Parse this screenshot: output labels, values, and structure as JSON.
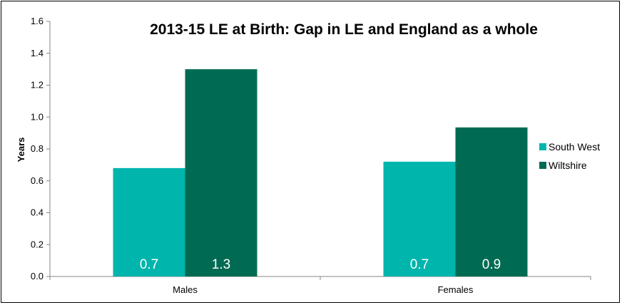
{
  "chart_data": {
    "type": "bar",
    "title": "2013-15 LE at Birth: Gap in LE and England as a whole",
    "ylabel": "Years",
    "xlabel": "",
    "ylim": [
      0,
      1.6
    ],
    "yticks": [
      "0.0",
      "0.2",
      "0.4",
      "0.6",
      "0.8",
      "1.0",
      "1.2",
      "1.4",
      "1.6"
    ],
    "categories": [
      "Males",
      "Females"
    ],
    "series": [
      {
        "name": "South West",
        "color": "#00B5AC",
        "values": [
          0.68,
          0.72
        ],
        "labels": [
          "0.7",
          "0.7"
        ]
      },
      {
        "name": "Wiltshire",
        "color": "#006B52",
        "values": [
          1.3,
          0.935
        ],
        "labels": [
          "1.3",
          "0.9"
        ]
      }
    ],
    "legend": "right",
    "grid": false
  }
}
